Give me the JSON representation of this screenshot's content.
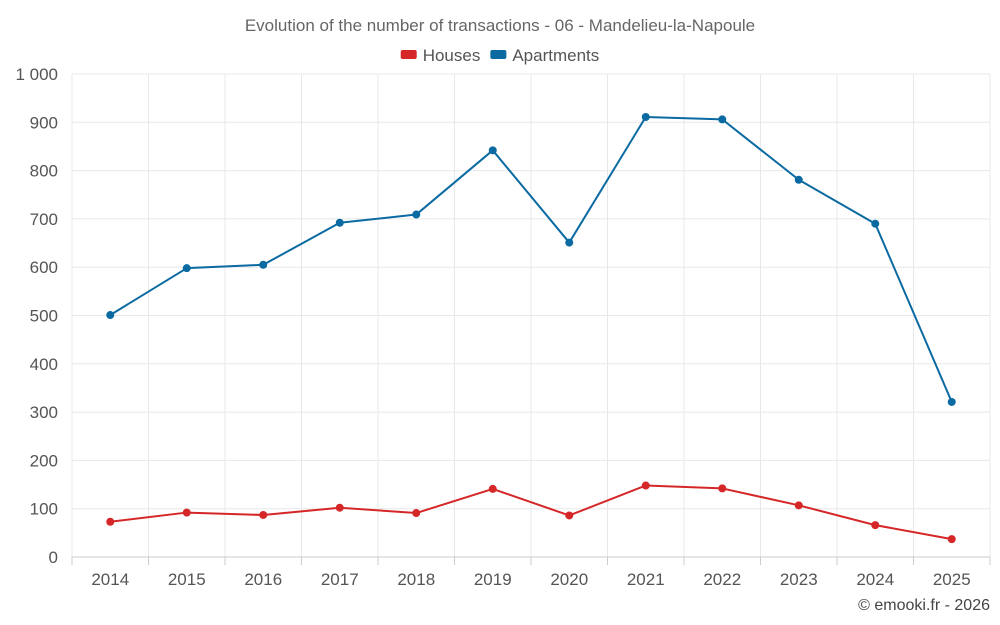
{
  "chart_data": {
    "type": "line",
    "title": "Evolution of the number of transactions - 06 - Mandelieu-la-Napoule",
    "categories": [
      "2014",
      "2015",
      "2016",
      "2017",
      "2018",
      "2019",
      "2020",
      "2021",
      "2022",
      "2023",
      "2024",
      "2025"
    ],
    "series": [
      {
        "name": "Houses",
        "color": "#d62728",
        "values": [
          73,
          92,
          87,
          102,
          91,
          141,
          86,
          148,
          142,
          107,
          66,
          37
        ]
      },
      {
        "name": "Apartments",
        "color": "#0a6aa1",
        "values": [
          501,
          598,
          605,
          692,
          709,
          842,
          651,
          911,
          906,
          781,
          690,
          321
        ]
      }
    ],
    "ylim": [
      0,
      1000
    ],
    "yticks": [
      0,
      100,
      200,
      300,
      400,
      500,
      600,
      700,
      800,
      900,
      1000
    ],
    "ytick_labels": [
      "0",
      "100",
      "200",
      "300",
      "400",
      "500",
      "600",
      "700",
      "800",
      "900",
      "1 000"
    ],
    "xlabel": "",
    "ylabel": "",
    "grid": true,
    "legend": "top-center"
  },
  "credit": "© emooki.fr - 2026"
}
